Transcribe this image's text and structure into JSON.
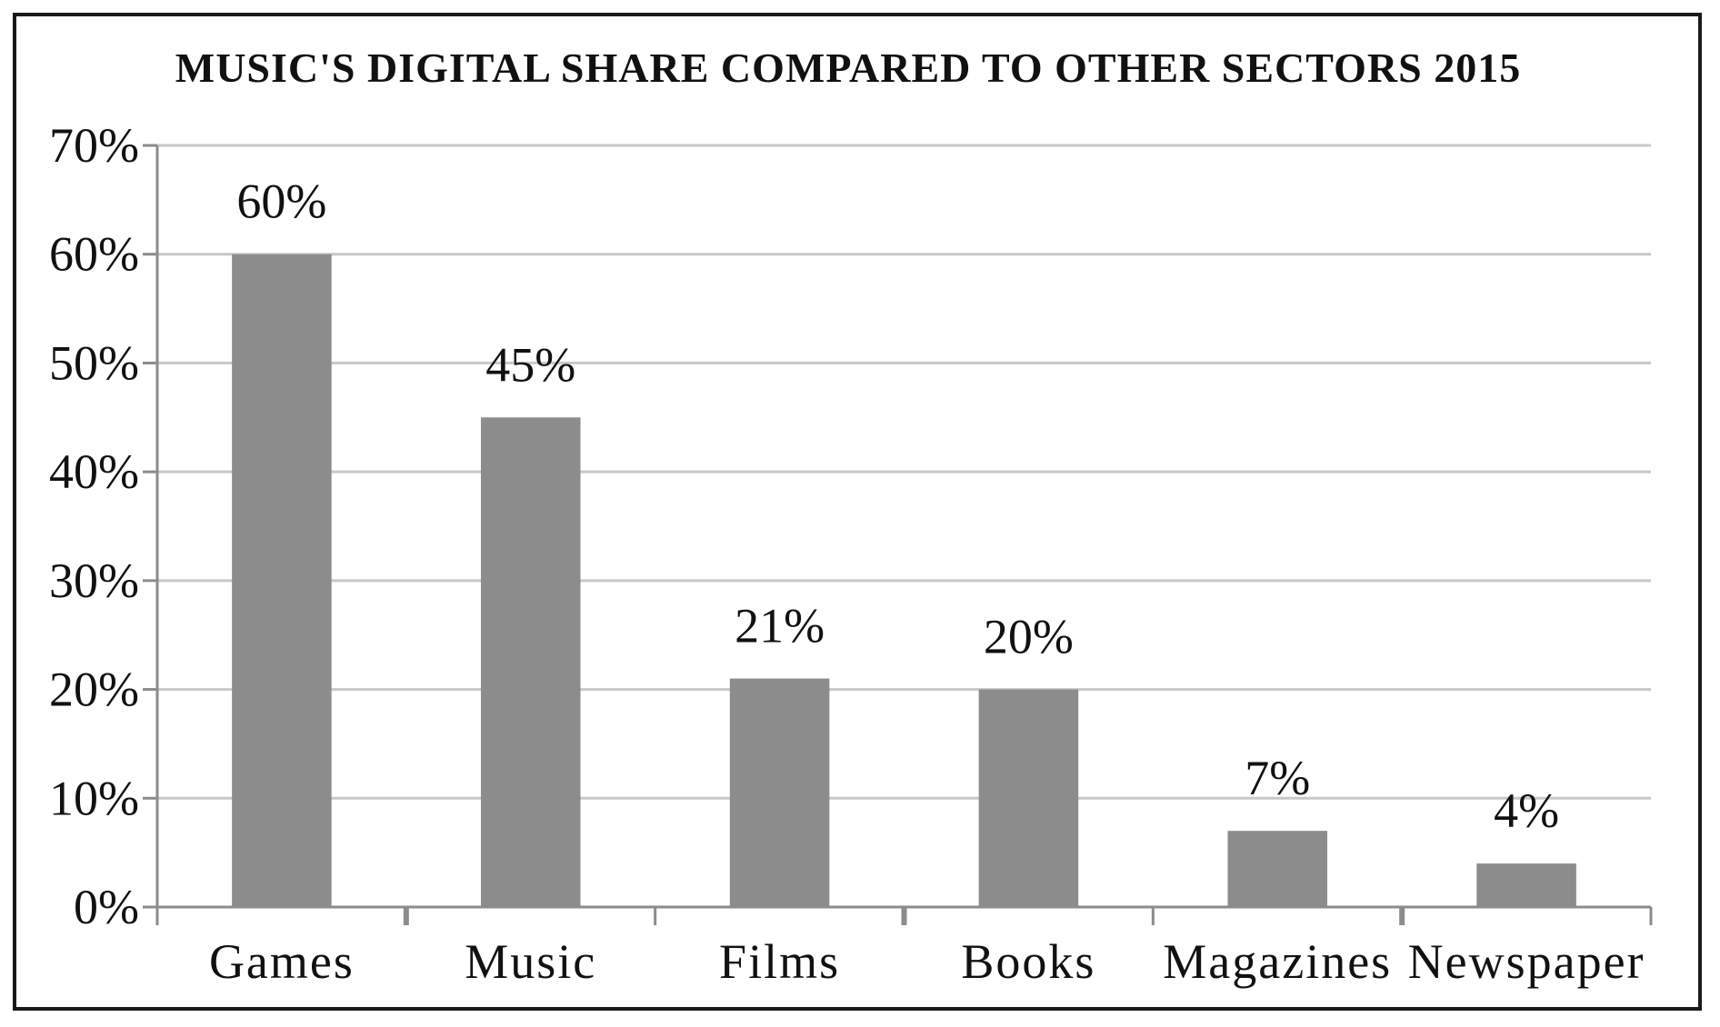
{
  "chart_data": {
    "type": "bar",
    "title": "MUSIC'S DIGITAL SHARE COMPARED TO OTHER SECTORS 2015",
    "xlabel": "",
    "ylabel": "",
    "categories": [
      "Games",
      "Music",
      "Films",
      "Books",
      "Magazines",
      "Newspaper"
    ],
    "values": [
      60,
      45,
      21,
      20,
      7,
      4
    ],
    "value_labels": [
      "60%",
      "45%",
      "21%",
      "20%",
      "7%",
      "4%"
    ],
    "ylim": [
      0,
      70
    ],
    "yticks": [
      0,
      10,
      20,
      30,
      40,
      50,
      60,
      70
    ],
    "ytick_labels": [
      "0%",
      "10%",
      "20%",
      "30%",
      "40%",
      "50%",
      "60%",
      "70%"
    ],
    "grid": true,
    "legend": "none",
    "colors": {
      "bar": "#8c8c8c",
      "grid": "#c8c8c8",
      "axis": "#8c8c8c",
      "frame": "#1a1a1a",
      "text": "#111111"
    }
  }
}
